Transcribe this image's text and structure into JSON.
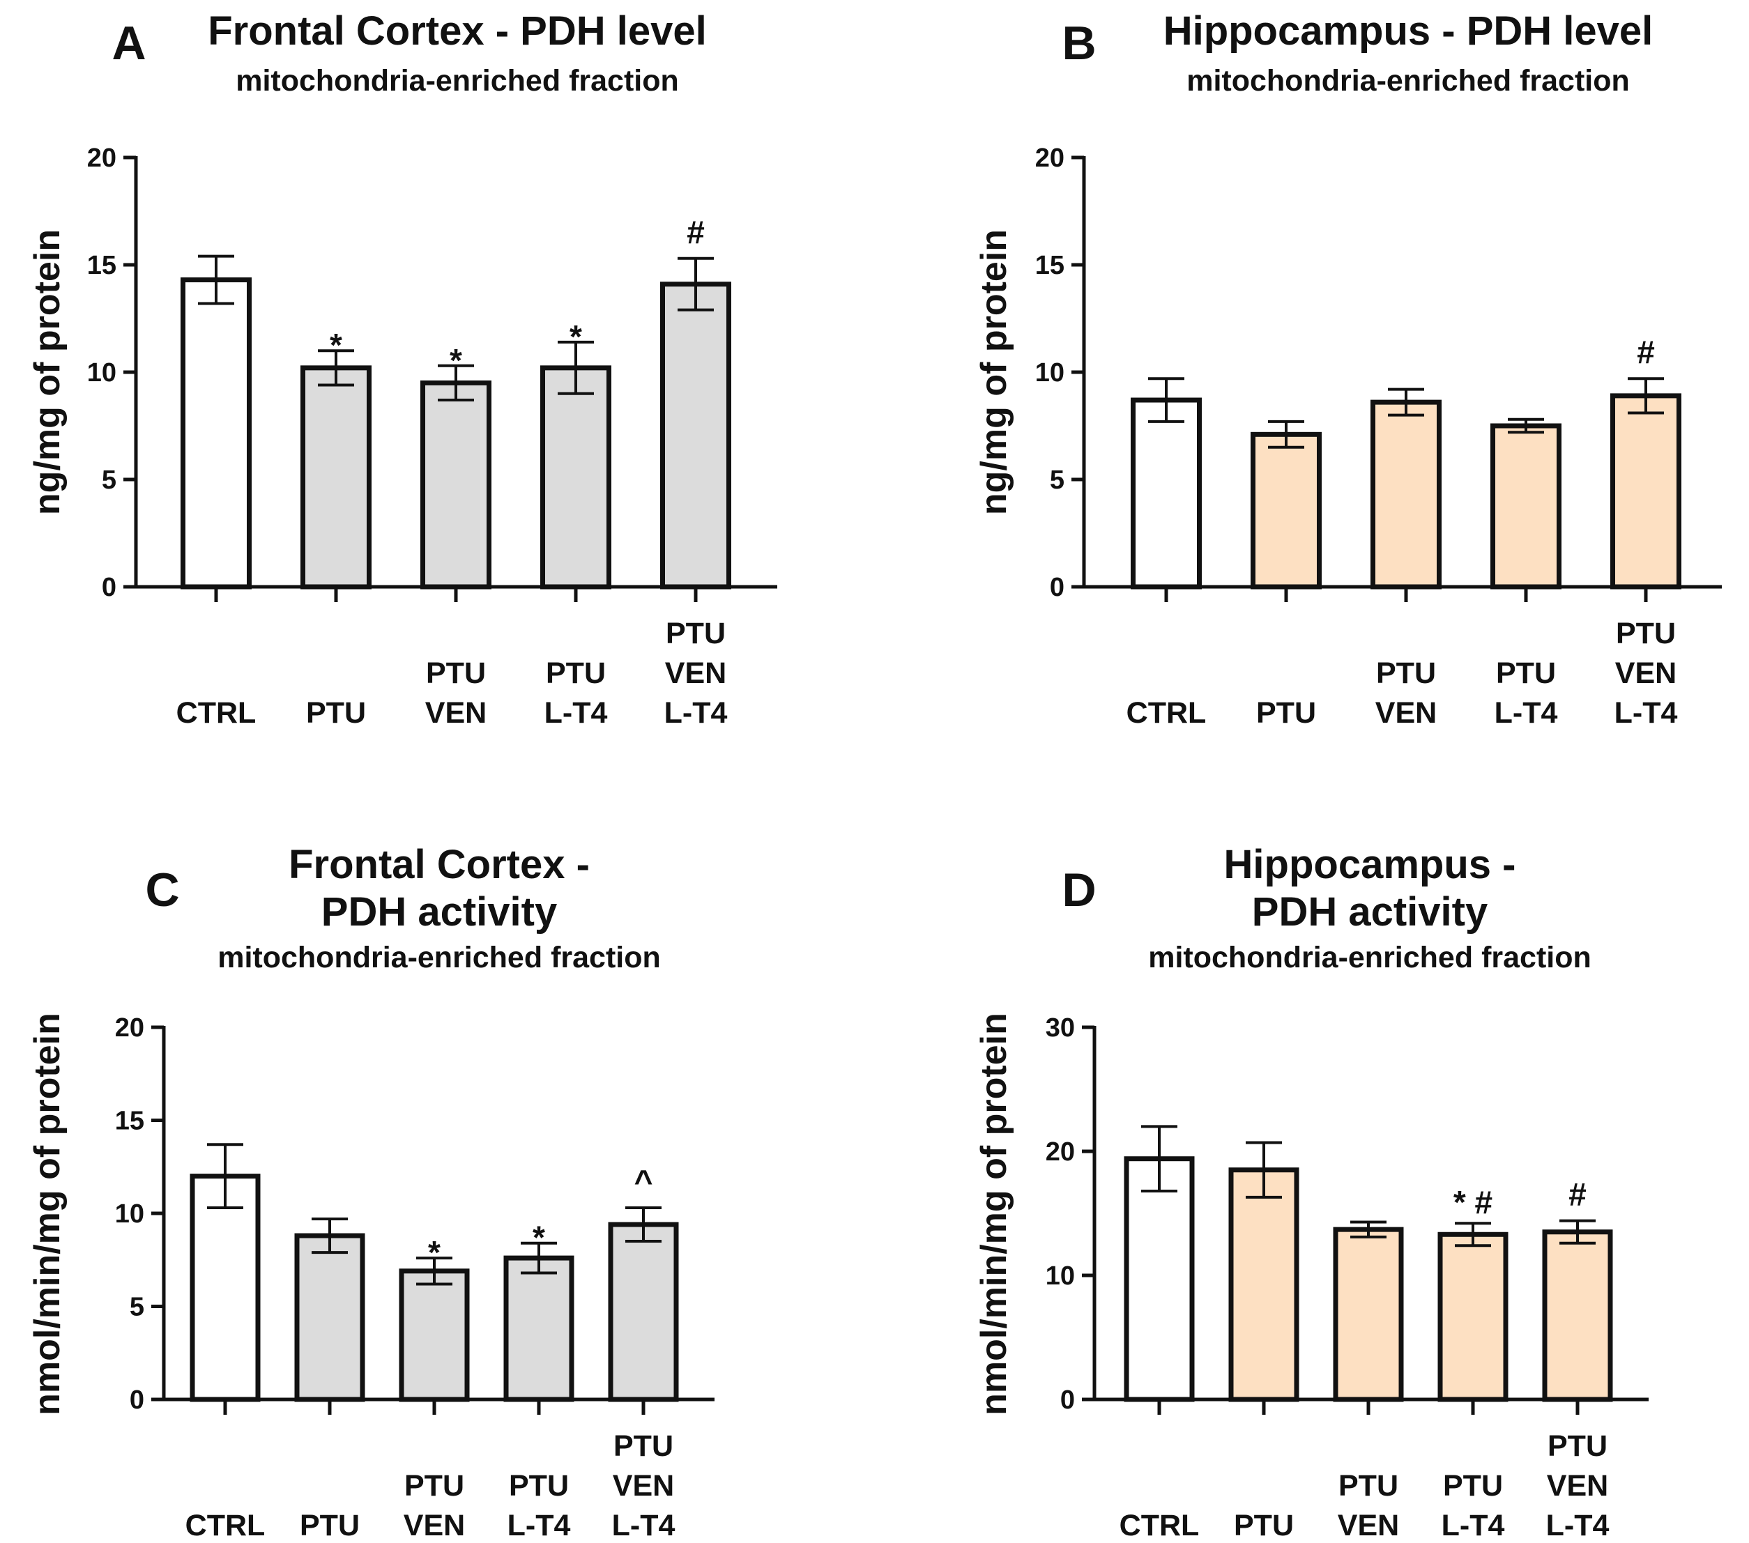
{
  "chart_data": [
    {
      "panel": "A",
      "type": "bar",
      "title_lines": [
        "Frontal Cortex - PDH level"
      ],
      "subtitle": "mitochondria-enriched fraction",
      "ylabel": "ng/mg of protein",
      "xlabel": "",
      "ylim": [
        0,
        20
      ],
      "yticks": [
        0,
        5,
        10,
        15,
        20
      ],
      "categories": [
        [
          "CTRL"
        ],
        [
          "PTU"
        ],
        [
          "PTU",
          "VEN"
        ],
        [
          "PTU",
          "L-T4"
        ],
        [
          "PTU",
          "VEN",
          "L-T4"
        ]
      ],
      "values": [
        14.3,
        10.2,
        9.5,
        10.2,
        14.1
      ],
      "errors": [
        1.1,
        0.8,
        0.8,
        1.2,
        1.2
      ],
      "significance": [
        "",
        "*",
        "*",
        "*",
        "#"
      ],
      "colors": [
        "#ffffff",
        "#dcdcdc",
        "#dcdcdc",
        "#dcdcdc",
        "#dcdcdc"
      ]
    },
    {
      "panel": "B",
      "type": "bar",
      "title_lines": [
        "Hippocampus - PDH level"
      ],
      "subtitle": "mitochondria-enriched fraction",
      "ylabel": "ng/mg of protein",
      "xlabel": "",
      "ylim": [
        0,
        20
      ],
      "yticks": [
        0,
        5,
        10,
        15,
        20
      ],
      "categories": [
        [
          "CTRL"
        ],
        [
          "PTU"
        ],
        [
          "PTU",
          "VEN"
        ],
        [
          "PTU",
          "L-T4"
        ],
        [
          "PTU",
          "VEN",
          "L-T4"
        ]
      ],
      "values": [
        8.7,
        7.1,
        8.6,
        7.5,
        8.9
      ],
      "errors": [
        1.0,
        0.6,
        0.6,
        0.3,
        0.8
      ],
      "significance": [
        "",
        "",
        "",
        "",
        "#"
      ],
      "colors": [
        "#ffffff",
        "#fde0c2",
        "#fde0c2",
        "#fde0c2",
        "#fde0c2"
      ]
    },
    {
      "panel": "C",
      "type": "bar",
      "title_lines": [
        "Frontal Cortex -",
        "PDH activity"
      ],
      "subtitle": "mitochondria-enriched fraction",
      "ylabel": "nmol/min/mg of protein",
      "xlabel": "",
      "ylim": [
        0,
        20
      ],
      "yticks": [
        0,
        5,
        10,
        15,
        20
      ],
      "categories": [
        [
          "CTRL"
        ],
        [
          "PTU"
        ],
        [
          "PTU",
          "VEN"
        ],
        [
          "PTU",
          "L-T4"
        ],
        [
          "PTU",
          "VEN",
          "L-T4"
        ]
      ],
      "values": [
        12.0,
        8.8,
        6.9,
        7.6,
        9.4
      ],
      "errors": [
        1.7,
        0.9,
        0.7,
        0.8,
        0.9
      ],
      "significance": [
        "",
        "",
        "*",
        "*",
        "^"
      ],
      "colors": [
        "#ffffff",
        "#dcdcdc",
        "#dcdcdc",
        "#dcdcdc",
        "#dcdcdc"
      ]
    },
    {
      "panel": "D",
      "type": "bar",
      "title_lines": [
        "Hippocampus -",
        "PDH activity"
      ],
      "subtitle": "mitochondria-enriched fraction",
      "ylabel": "nmol/min/mg of protein",
      "xlabel": "",
      "ylim": [
        0,
        30
      ],
      "yticks": [
        0,
        10,
        20,
        30
      ],
      "categories": [
        [
          "CTRL"
        ],
        [
          "PTU"
        ],
        [
          "PTU",
          "VEN"
        ],
        [
          "PTU",
          "L-T4"
        ],
        [
          "PTU",
          "VEN",
          "L-T4"
        ]
      ],
      "values": [
        19.4,
        18.5,
        13.7,
        13.3,
        13.5
      ],
      "errors": [
        2.6,
        2.2,
        0.6,
        0.9,
        0.9
      ],
      "significance": [
        "",
        "",
        "",
        "*  #",
        "#"
      ],
      "colors": [
        "#ffffff",
        "#fde0c2",
        "#fde0c2",
        "#fde0c2",
        "#fde0c2"
      ]
    }
  ]
}
